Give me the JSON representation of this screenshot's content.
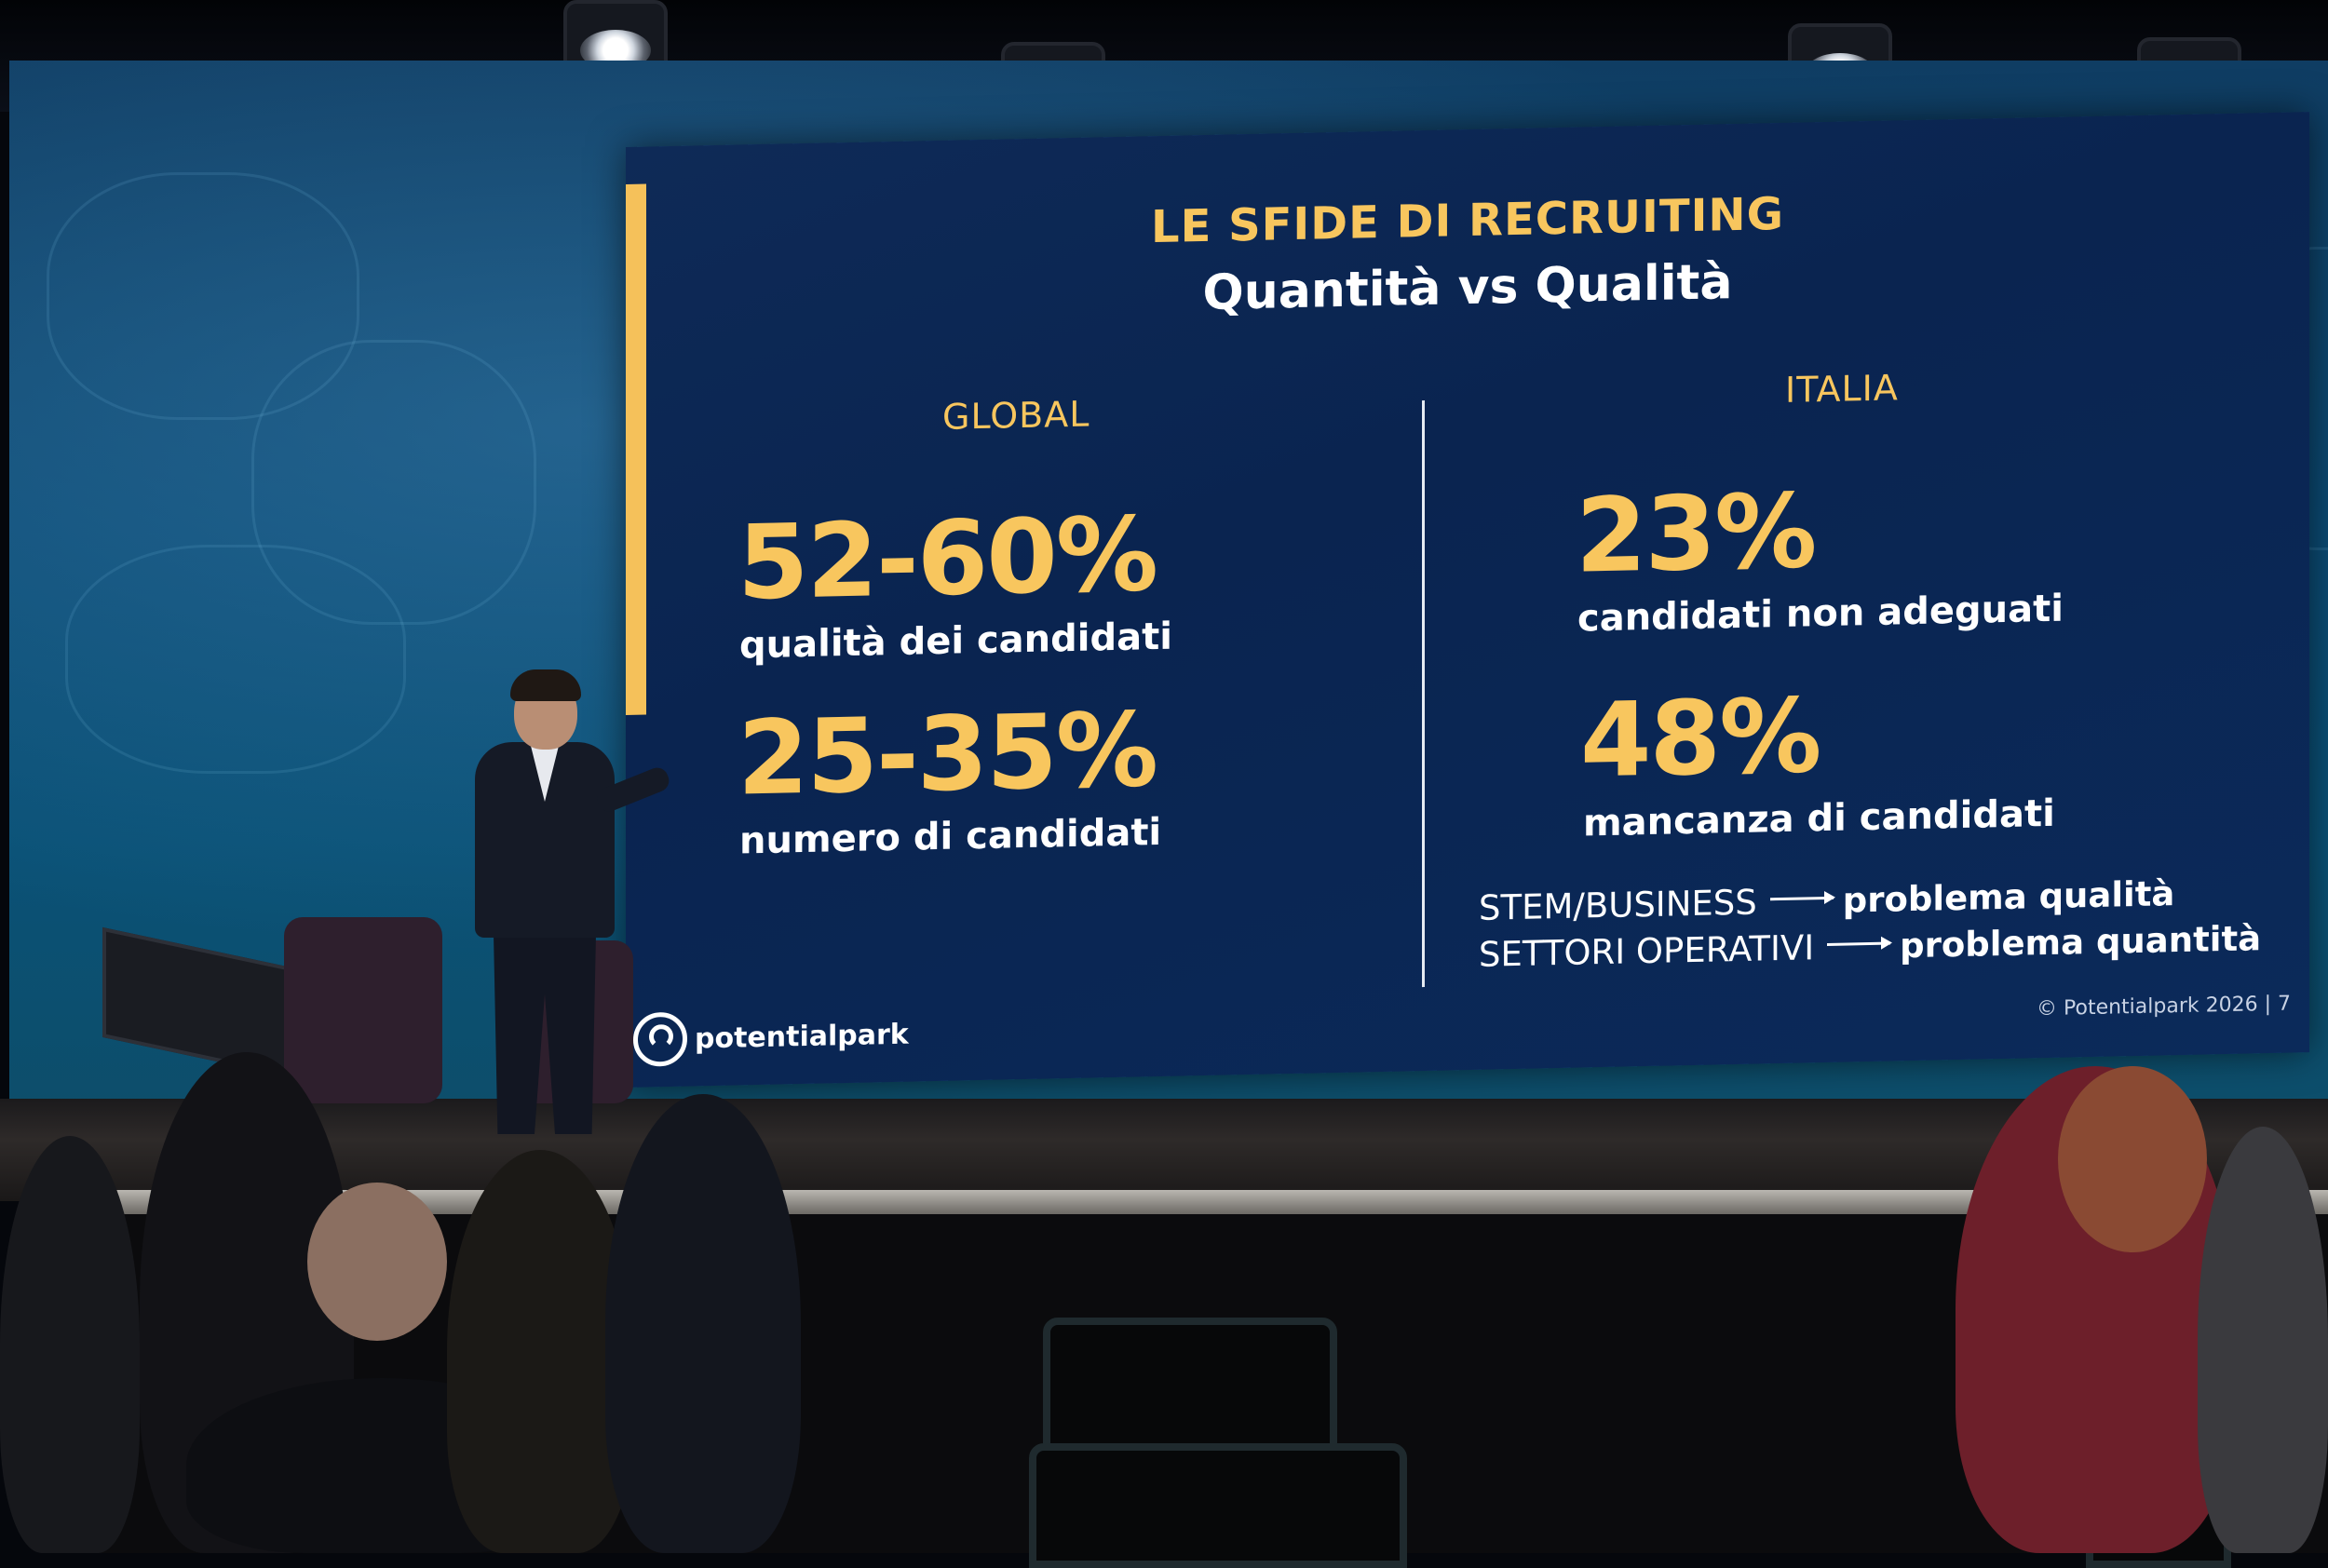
{
  "slide": {
    "title": "LE SFIDE DI RECRUITING",
    "subtitle": "Quantità vs Qualità",
    "global": {
      "heading": "GLOBAL",
      "stats": [
        {
          "value": "52-60%",
          "label": "qualità dei candidati"
        },
        {
          "value": "25-35%",
          "label": "numero di candidati"
        }
      ]
    },
    "italia": {
      "heading": "ITALIA",
      "stats": [
        {
          "value": "23%",
          "label": "candidati non adeguati"
        },
        {
          "value": "48%",
          "label": "mancanza di candidati"
        }
      ],
      "notes": [
        {
          "sector": "STEM/BUSINESS",
          "result": "problema qualità"
        },
        {
          "sector": "SETTORI OPERATIVI",
          "result": "problema quantità"
        }
      ]
    },
    "logo_text": "potentialpark",
    "footer": "© Potentialpark 2026  |  7"
  },
  "colors": {
    "slide_background": "#0b2650",
    "accent_yellow": "#f8c65e",
    "text_white": "#ffffff"
  }
}
